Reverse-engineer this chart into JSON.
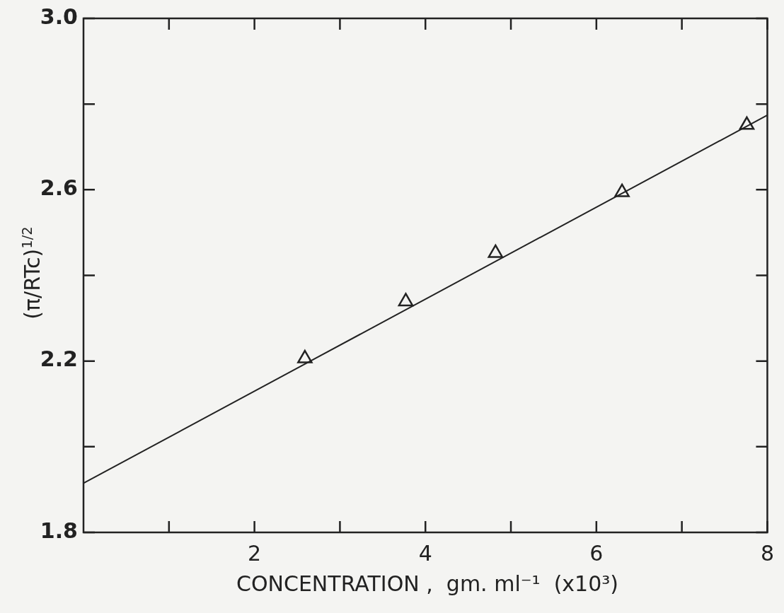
{
  "chart_data": {
    "type": "scatter",
    "xlabel": "CONCENTRATION ,  gm. ml⁻¹  (x10³)",
    "ylabel": "(π/RTc)$^{1/2}$",
    "marker": "triangle",
    "series": [
      {
        "color": "#222222",
        "x": [
          2.59,
          3.77,
          4.82,
          6.3,
          7.76
        ],
        "values": [
          2.206,
          2.339,
          2.452,
          2.594,
          2.751
        ]
      },
      {
        "type": "line",
        "color": "#222222",
        "marker": "none",
        "x": [
          0,
          8
        ],
        "values": [
          1.915,
          2.774
        ]
      }
    ],
    "xlim": [
      0,
      8
    ],
    "ylim": [
      1.8,
      3.0
    ],
    "xticks": [
      {
        "value": 1,
        "label": null
      },
      {
        "value": 2,
        "label": "2"
      },
      {
        "value": 3,
        "label": null
      },
      {
        "value": 4,
        "label": "4"
      },
      {
        "value": 5,
        "label": null
      },
      {
        "value": 6,
        "label": "6"
      },
      {
        "value": 7,
        "label": null
      },
      {
        "value": 8,
        "label": "8"
      }
    ],
    "yticks": [
      {
        "value": 1.8,
        "label": "1.8"
      },
      {
        "value": 2.0,
        "label": null
      },
      {
        "value": 2.2,
        "label": "2.2"
      },
      {
        "value": 2.4,
        "label": null
      },
      {
        "value": 2.6,
        "label": "2.6"
      },
      {
        "value": 2.8,
        "label": null
      },
      {
        "value": 3.0,
        "label": "3.0"
      }
    ]
  }
}
